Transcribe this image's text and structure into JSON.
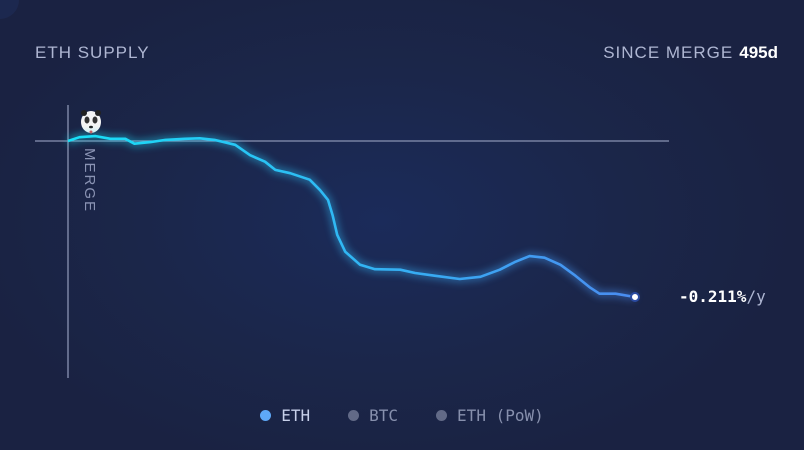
{
  "header": {
    "title": "ETH SUPPLY",
    "since_label": "SINCE MERGE",
    "since_value": "495d"
  },
  "marker": {
    "label": "MERGE",
    "icon": "panda-icon"
  },
  "rate": {
    "value": "-0.211%",
    "unit": "/y"
  },
  "legend": [
    {
      "label": "ETH",
      "color": "#5ea8f7",
      "active": true
    },
    {
      "label": "BTC",
      "color": "#626a87",
      "active": false
    },
    {
      "label": "ETH (PoW)",
      "color": "#626a87",
      "active": false
    }
  ],
  "colors": {
    "line_start": "#18e0f7",
    "line_end": "#4a8cf0",
    "baseline": "#8a93b3"
  },
  "chart_data": {
    "type": "line",
    "title": "ETH SUPPLY",
    "xlabel": "",
    "ylabel": "",
    "grid": false,
    "legend_placement": "bottom",
    "series": [
      {
        "name": "ETH",
        "x": [
          0,
          10,
          24,
          37,
          50,
          58,
          72,
          85,
          102,
          115,
          128,
          146,
          159,
          172,
          181,
          194,
          211,
          220,
          227,
          231,
          235,
          242,
          255,
          268,
          290,
          303,
          320,
          342,
          360,
          377,
          390,
          403,
          416,
          430,
          443,
          456,
          464,
          478,
          495
        ],
        "y": [
          0,
          0.007,
          0.009,
          0.004,
          0.004,
          -0.005,
          -0.002,
          0.002,
          0.004,
          0.005,
          0.002,
          -0.007,
          -0.026,
          -0.038,
          -0.053,
          -0.059,
          -0.071,
          -0.09,
          -0.108,
          -0.136,
          -0.172,
          -0.203,
          -0.227,
          -0.235,
          -0.236,
          -0.242,
          -0.247,
          -0.253,
          -0.249,
          -0.236,
          -0.222,
          -0.211,
          -0.214,
          -0.227,
          -0.247,
          -0.269,
          -0.28,
          -0.28,
          -0.286
        ]
      }
    ]
  }
}
